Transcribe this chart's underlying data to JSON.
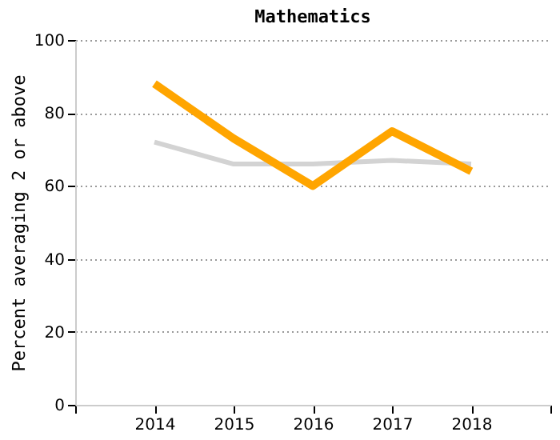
{
  "chart_data": {
    "type": "line",
    "title": "Mathematics",
    "ylabel": "Percent averaging 2 or above",
    "x": [
      2014,
      2015,
      2016,
      2017,
      2018
    ],
    "series": [
      {
        "color": "#d3d3d3",
        "values": [
          72,
          66,
          66,
          67,
          66
        ]
      },
      {
        "color": "#ffa500",
        "values": [
          88,
          73,
          60,
          75,
          64
        ]
      }
    ],
    "xlim": [
      2013,
      2019
    ],
    "xticks": [
      {
        "value": 2013,
        "label": null
      },
      2014,
      2015,
      2016,
      2017,
      2018,
      {
        "value": 2019,
        "label": null
      }
    ],
    "ylim": [
      0,
      100
    ],
    "yticks": [
      0,
      20,
      40,
      60,
      80,
      100
    ],
    "grid": "y",
    "marker": "none",
    "line_style": "solid"
  }
}
